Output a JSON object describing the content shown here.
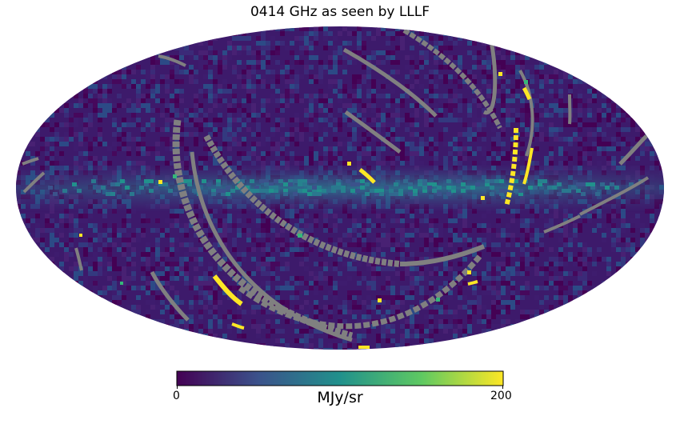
{
  "title": "0414 GHz as seen by LLLF",
  "map": {
    "projection": "mollweide",
    "colormap": "viridis",
    "mask_color": "#808080",
    "background_color": "#3d1a6b"
  },
  "colorbar": {
    "min_label": "0",
    "max_label": "200",
    "unit_label": "MJy/sr",
    "range": [
      0,
      200
    ],
    "colors": [
      "#440154",
      "#3b528b",
      "#21918c",
      "#5ec962",
      "#fde725"
    ]
  }
}
